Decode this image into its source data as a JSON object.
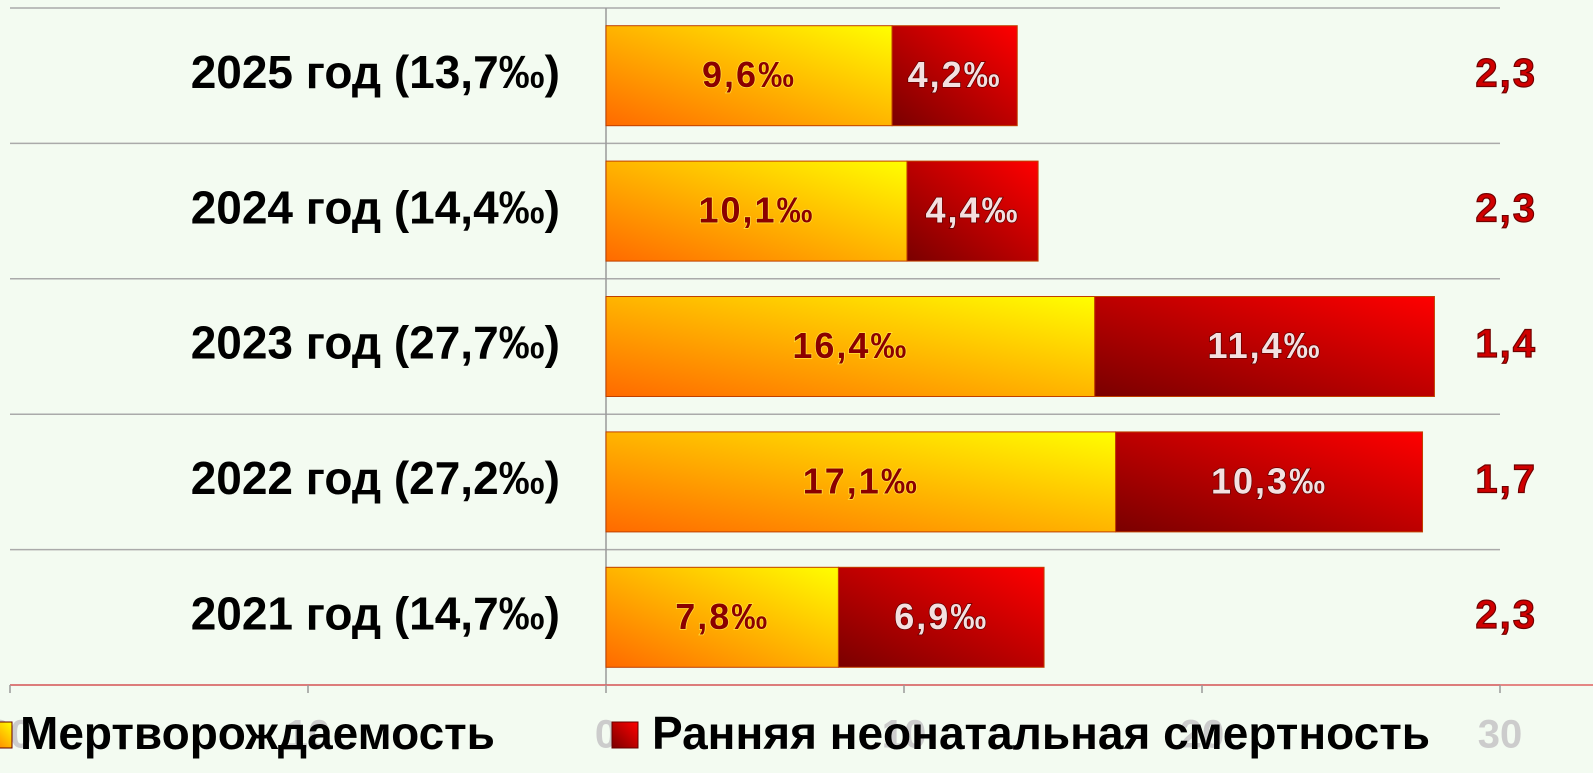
{
  "chart_data": {
    "type": "stacked-barh",
    "categories": [
      "2025 год (13,7‰)",
      "2024 год (14,4‰)",
      "2023 год (27,7‰)",
      "2022 год (27,2‰)",
      "2021 год (14,7‰)"
    ],
    "series": [
      {
        "name": "Мертворождаемость",
        "color": "#ffd000",
        "values": [
          9.6,
          10.1,
          16.4,
          17.1,
          7.8
        ],
        "value_labels": [
          "9,6‰",
          "10,1‰",
          "16,4‰",
          "17,1‰",
          "7,8‰"
        ]
      },
      {
        "name": "Ранняя неонатальная смертность",
        "color": "#d00000",
        "values": [
          4.2,
          4.4,
          11.4,
          10.3,
          6.9
        ],
        "value_labels": [
          "4,2‰",
          "4,4‰",
          "11,4‰",
          "10,3‰",
          "6,9‰"
        ]
      }
    ],
    "annotations": {
      "values": [
        2.3,
        2.3,
        1.4,
        1.7,
        2.3
      ],
      "value_labels": [
        "2,3",
        "2,3",
        "1,4",
        "1,7",
        "2,3"
      ]
    },
    "xlim": [
      -20,
      30
    ],
    "xticks": [
      {
        "value": -20,
        "label": "20"
      },
      {
        "value": -10,
        "label": "10"
      },
      0,
      10,
      20,
      30
    ],
    "legend": "bottom"
  }
}
